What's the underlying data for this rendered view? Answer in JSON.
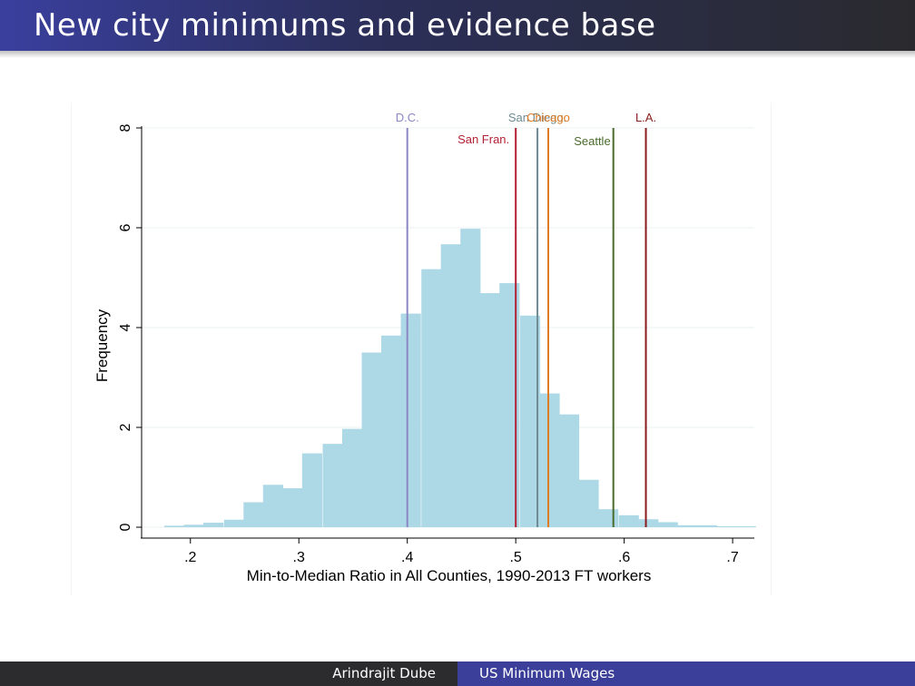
{
  "slide": {
    "title": "New city minimums and evidence base"
  },
  "footer": {
    "author": "Arindrajit Dube",
    "topic": "US Minimum Wages"
  },
  "colors": {
    "bar_fill": "#add8e6",
    "axis": "#000000",
    "grid": "#eaf2f3"
  },
  "chart_data": {
    "type": "bar",
    "xlabel": "Min-to-Median Ratio in All Counties, 1990-2013 FT workers",
    "ylabel": "Frequency",
    "xlim": [
      0.155,
      0.72
    ],
    "ylim": [
      0,
      8
    ],
    "x_ticks": [
      {
        "value": 0.2,
        "label": ".2"
      },
      {
        "value": 0.3,
        "label": ".3"
      },
      {
        "value": 0.4,
        "label": ".4"
      },
      {
        "value": 0.5,
        "label": ".5"
      },
      {
        "value": 0.6,
        "label": ".6"
      },
      {
        "value": 0.7,
        "label": ".7"
      }
    ],
    "y_ticks": [
      {
        "value": 0,
        "label": "0"
      },
      {
        "value": 2,
        "label": "2"
      },
      {
        "value": 4,
        "label": "4"
      },
      {
        "value": 6,
        "label": "6"
      },
      {
        "value": 8,
        "label": "8"
      }
    ],
    "grid": true,
    "bin_width": 0.0182,
    "bins": [
      {
        "x_start": 0.176,
        "value": 0.03
      },
      {
        "x_start": 0.194,
        "value": 0.05
      },
      {
        "x_start": 0.212,
        "value": 0.09
      },
      {
        "x_start": 0.231,
        "value": 0.15
      },
      {
        "x_start": 0.249,
        "value": 0.5
      },
      {
        "x_start": 0.267,
        "value": 0.85
      },
      {
        "x_start": 0.285,
        "value": 0.78
      },
      {
        "x_start": 0.303,
        "value": 1.48
      },
      {
        "x_start": 0.322,
        "value": 1.67
      },
      {
        "x_start": 0.34,
        "value": 1.97
      },
      {
        "x_start": 0.358,
        "value": 3.5
      },
      {
        "x_start": 0.376,
        "value": 3.84
      },
      {
        "x_start": 0.394,
        "value": 4.28
      },
      {
        "x_start": 0.413,
        "value": 5.17
      },
      {
        "x_start": 0.431,
        "value": 5.67
      },
      {
        "x_start": 0.449,
        "value": 5.98
      },
      {
        "x_start": 0.467,
        "value": 4.69
      },
      {
        "x_start": 0.485,
        "value": 4.89
      },
      {
        "x_start": 0.504,
        "value": 4.24
      },
      {
        "x_start": 0.522,
        "value": 2.68
      },
      {
        "x_start": 0.54,
        "value": 2.26
      },
      {
        "x_start": 0.558,
        "value": 0.95
      },
      {
        "x_start": 0.576,
        "value": 0.36
      },
      {
        "x_start": 0.595,
        "value": 0.24
      },
      {
        "x_start": 0.613,
        "value": 0.16
      },
      {
        "x_start": 0.631,
        "value": 0.1
      },
      {
        "x_start": 0.649,
        "value": 0.04
      },
      {
        "x_start": 0.667,
        "value": 0.04
      },
      {
        "x_start": 0.685,
        "value": 0.02
      },
      {
        "x_start": 0.703,
        "value": 0.02
      }
    ],
    "reference_lines": [
      {
        "city": "D.C.",
        "x": 0.4,
        "color": "#8b86c4",
        "label_row": 1
      },
      {
        "city": "San Fran.",
        "x": 0.5,
        "color": "#b22234",
        "label_row": 2
      },
      {
        "city": "San Diego.",
        "x": 0.52,
        "color": "#6e8a93",
        "label_row": 1
      },
      {
        "city": "Chicago",
        "x": 0.53,
        "color": "#e07b23",
        "label_row": 1
      },
      {
        "city": "Seattle",
        "x": 0.59,
        "color": "#4a6b2c",
        "label_row": 3
      },
      {
        "city": "L.A.",
        "x": 0.62,
        "color": "#8b1a1a",
        "label_row": 1
      }
    ]
  }
}
